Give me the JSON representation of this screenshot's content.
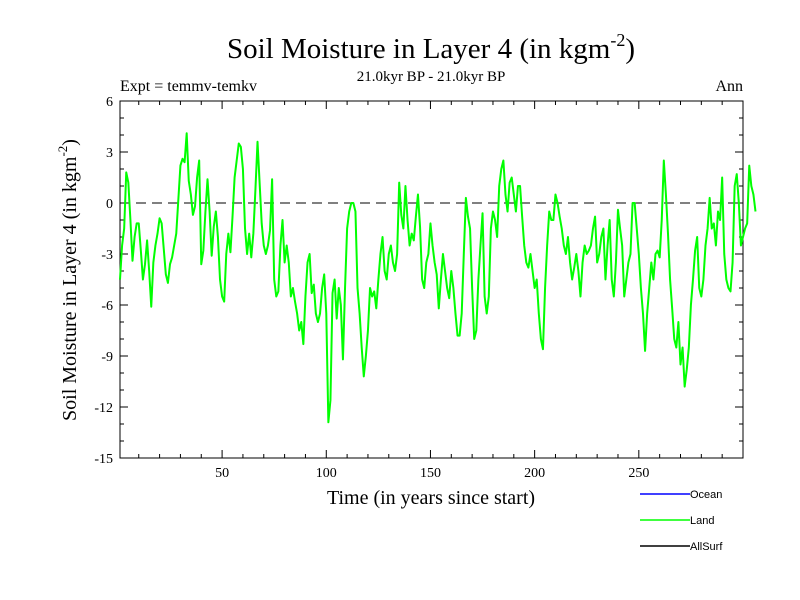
{
  "chart_data": {
    "type": "line",
    "title": "Soil Moisture in Layer 4 (in kgm",
    "title_sup": "-2",
    "title_close": ")",
    "subtitle": "21.0kyr BP - 21.0kyr BP",
    "expt_label": "Expt = temmv-temkv",
    "season_label": "Ann",
    "xlabel": "Time (in years since start)",
    "ylabel": "Soil Moisture in Layer 4 (in kgm",
    "ylabel_sup": "-2",
    "ylabel_close": ")",
    "xlim": [
      1,
      300
    ],
    "ylim": [
      -15,
      6
    ],
    "x_ticks": [
      50,
      100,
      150,
      200,
      250
    ],
    "x_tick_labels": [
      "50",
      "100",
      "150",
      "200",
      "250"
    ],
    "y_ticks": [
      -15,
      -12,
      -9,
      -6,
      -3,
      0,
      3,
      6
    ],
    "y_tick_labels": [
      "-15",
      "-12",
      "-9",
      "-6",
      "-3",
      "0",
      "3",
      "6"
    ],
    "reference_line": 0,
    "legend": [
      {
        "name": "Ocean",
        "color": "#0000ff"
      },
      {
        "name": "Land",
        "color": "#00ff00"
      },
      {
        "name": "AllSurf",
        "color": "#000000"
      }
    ],
    "series": [
      {
        "name": "Land",
        "color": "#00ff00",
        "x_start": 1,
        "values": [
          -4.5,
          -2.5,
          -1.5,
          1.8,
          1.2,
          -1.0,
          -3.4,
          -2.0,
          -1.2,
          -1.2,
          -2.8,
          -4.5,
          -3.6,
          -2.2,
          -4.0,
          -6.1,
          -3.5,
          -2.5,
          -1.8,
          -0.9,
          -1.2,
          -2.7,
          -4.2,
          -4.7,
          -3.6,
          -3.2,
          -2.5,
          -1.8,
          0.2,
          2.2,
          2.6,
          2.4,
          4.1,
          1.3,
          0.5,
          -0.7,
          -0.2,
          1.5,
          2.5,
          -3.6,
          -2.8,
          -0.5,
          1.4,
          -0.5,
          -3.1,
          -1.4,
          -0.5,
          -2.0,
          -4.5,
          -5.5,
          -5.8,
          -3.0,
          -1.8,
          -2.9,
          -0.8,
          1.5,
          2.5,
          3.5,
          3.3,
          2.0,
          -1.5,
          -3.0,
          -1.8,
          -3.2,
          -1.8,
          0.8,
          3.6,
          1.2,
          -1.2,
          -2.5,
          -3.0,
          -2.5,
          -1.6,
          1.4,
          -4.5,
          -5.5,
          -5.2,
          -2.5,
          -1.0,
          -3.5,
          -2.5,
          -3.5,
          -5.5,
          -5.0,
          -5.8,
          -6.5,
          -7.5,
          -7.0,
          -8.3,
          -5.5,
          -3.5,
          -3.0,
          -5.3,
          -4.8,
          -6.5,
          -7.0,
          -6.5,
          -5.0,
          -4.2,
          -6.5,
          -12.9,
          -11.6,
          -5.3,
          -4.5,
          -6.8,
          -5.0,
          -6.0,
          -9.2,
          -5.0,
          -1.5,
          -0.5,
          0.0,
          0.0,
          -0.5,
          -5.0,
          -6.5,
          -8.5,
          -10.2,
          -9.0,
          -7.5,
          -5.0,
          -5.5,
          -5.2,
          -6.2,
          -4.5,
          -3.0,
          -2.0,
          -4.0,
          -4.5,
          -3.0,
          -2.5,
          -3.5,
          -4.0,
          -3.0,
          1.2,
          -0.7,
          -1.5,
          1.0,
          -1.0,
          -2.5,
          -1.8,
          -2.2,
          -0.8,
          0.5,
          -1.4,
          -4.5,
          -5.0,
          -3.5,
          -3.0,
          -1.2,
          -2.5,
          -3.5,
          -4.2,
          -6.2,
          -4.5,
          -3.0,
          -4.0,
          -5.0,
          -5.6,
          -4.0,
          -5.0,
          -6.5,
          -7.8,
          -7.8,
          -6.5,
          -3.0,
          0.3,
          -0.8,
          -1.5,
          -5.0,
          -8.0,
          -7.5,
          -4.5,
          -2.5,
          -0.6,
          -5.5,
          -6.5,
          -5.5,
          -1.5,
          -0.5,
          -1.0,
          -2.0,
          1.0,
          2.0,
          2.5,
          0.5,
          -0.5,
          1.2,
          1.5,
          0.5,
          -0.5,
          1.0,
          1.0,
          -0.8,
          -2.5,
          -3.5,
          -3.8,
          -3.0,
          -4.0,
          -5.0,
          -4.5,
          -6.5,
          -8.0,
          -8.6,
          -5.0,
          -2.5,
          -0.5,
          -1.0,
          -1.0,
          0.5,
          0.0,
          -0.8,
          -1.5,
          -2.5,
          -3.0,
          -2.0,
          -3.5,
          -4.5,
          -3.8,
          -3.0,
          -4.0,
          -5.5,
          -3.5,
          -2.5,
          -3.0,
          -2.8,
          -2.5,
          -1.5,
          -0.8,
          -3.5,
          -3.0,
          -2.0,
          -1.5,
          -4.5,
          -2.5,
          -1.0,
          -4.5,
          -5.5,
          -3.5,
          -0.4,
          -1.5,
          -2.5,
          -5.5,
          -4.5,
          -3.5,
          -3.0,
          0.0,
          0.0,
          -1.5,
          -3.0,
          -5.0,
          -6.5,
          -8.7,
          -6.5,
          -5.0,
          -3.5,
          -4.5,
          -3.0,
          -2.8,
          -3.2,
          -1.0,
          2.5,
          0.5,
          -1.8,
          -4.5,
          -6.2,
          -8.0,
          -8.5,
          -7.0,
          -9.5,
          -8.5,
          -10.8,
          -9.8,
          -8.5,
          -6.0,
          -4.5,
          -2.8,
          -2.0,
          -5.0,
          -5.5,
          -4.5,
          -2.5,
          -1.5,
          0.3,
          -1.5,
          -1.2,
          -2.5,
          -0.5,
          -1.0,
          1.5,
          -3.0,
          -4.5,
          -5.0,
          -5.2,
          -3.5,
          1.0,
          1.7,
          0.0,
          -2.5,
          -2.0,
          -1.5,
          -1.2,
          2.2,
          1.0,
          0.5,
          -0.5
        ]
      },
      {
        "name": "Ocean",
        "color": "#0000ff",
        "values": []
      },
      {
        "name": "AllSurf",
        "color": "#000000",
        "values": []
      }
    ]
  }
}
